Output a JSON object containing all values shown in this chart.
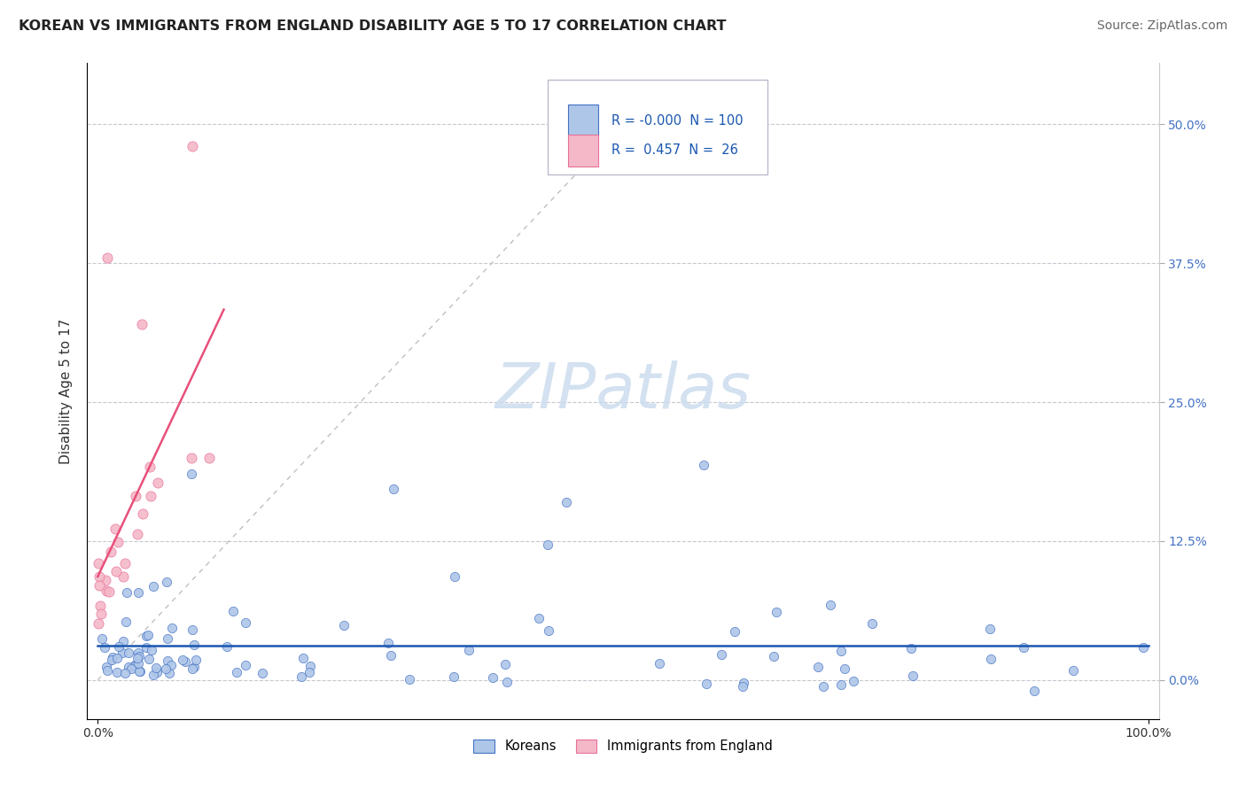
{
  "title": "KOREAN VS IMMIGRANTS FROM ENGLAND DISABILITY AGE 5 TO 17 CORRELATION CHART",
  "source": "Source: ZipAtlas.com",
  "xlabel": "",
  "ylabel": "Disability Age 5 to 17",
  "xlim": [
    -0.01,
    1.01
  ],
  "ylim": [
    -0.035,
    0.555
  ],
  "ytick_vals": [
    0.0,
    0.125,
    0.25,
    0.375,
    0.5
  ],
  "ytick_labels": [
    "0.0%",
    "12.5%",
    "25.0%",
    "37.5%",
    "50.0%"
  ],
  "xtick_vals": [
    0.0,
    1.0
  ],
  "xtick_labels": [
    "0.0%",
    "100.0%"
  ],
  "korean_R": "-0.000",
  "korean_N": 100,
  "england_R": "0.457",
  "england_N": 26,
  "korean_color": "#aec6e8",
  "england_color": "#f4b8c8",
  "korean_edge_color": "#4472c4",
  "england_edge_color": "#e8709a",
  "korean_line_color": "#1a56b0",
  "england_line_color": "#e8507a",
  "grid_color": "#c8c8d0",
  "background_color": "#ffffff",
  "watermark_color": "#ccdcee",
  "title_color": "#222222",
  "source_color": "#666666",
  "tick_color_right": "#4472c4",
  "tick_color_bottom": "#333333",
  "legend_korean": "Koreans",
  "legend_england": "Immigrants from England",
  "title_fontsize": 11.5,
  "axis_label_fontsize": 11,
  "tick_fontsize": 10,
  "legend_fontsize": 10,
  "source_fontsize": 10
}
